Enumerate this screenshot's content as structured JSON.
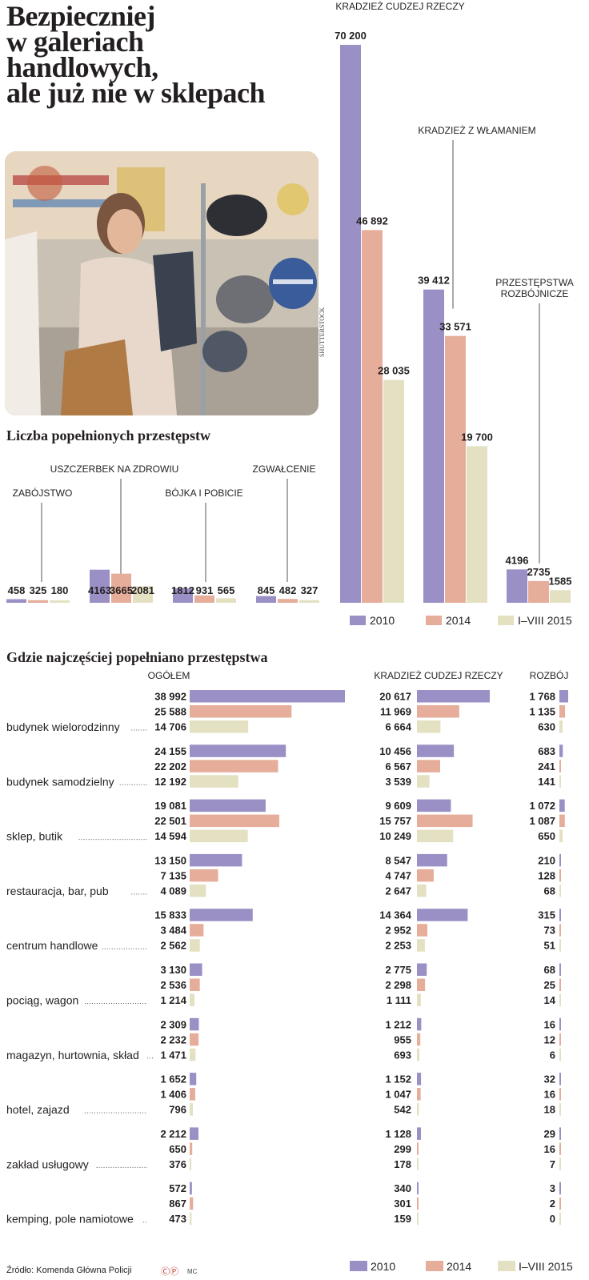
{
  "headline": [
    "Bezpieczniej",
    "w galeriach",
    "handlowych,",
    "ale już nie w sklepach"
  ],
  "photo_credit": "SHUTTERSTOCK",
  "colors": {
    "y2010": "#9b90c5",
    "y2014": "#e5ad9a",
    "y2015": "#e4e0c2",
    "text": "#231f20",
    "rule": "#555555"
  },
  "legend": [
    "2010",
    "2014",
    "I–VIII 2015"
  ],
  "section1_title": "Liczba popełnionych przestępstw",
  "section2_title": "Gdzie najczęściej popełniano przestępstwa",
  "source": "Źródło: Komenda Główna Policji",
  "logo_mark": "ⒸⓅ",
  "author": "MC",
  "chart_data": [
    {
      "type": "bar",
      "title": "Liczba popełnionych przestępstw",
      "series_names": [
        "2010",
        "2014",
        "I–VIII 2015"
      ],
      "categories": [
        {
          "label": "ZABÓJSTWO",
          "values": [
            458,
            325,
            180
          ],
          "display": [
            "458",
            "325",
            "180"
          ]
        },
        {
          "label": "USZCZERBEK NA ZDROWIU",
          "values": [
            4163,
            3665,
            2081
          ],
          "display": [
            "4163",
            "3665",
            "2081"
          ]
        },
        {
          "label": "BÓJKA I POBICIE",
          "values": [
            1812,
            931,
            565
          ],
          "display": [
            "1812",
            "931",
            "565"
          ]
        },
        {
          "label": "ZGWAŁCENIE",
          "values": [
            845,
            482,
            327
          ],
          "display": [
            "845",
            "482",
            "327"
          ]
        },
        {
          "label": "KRADZIEŻ CUDZEJ RZECZY",
          "values": [
            70200,
            46892,
            28035
          ],
          "display": [
            "70 200",
            "46 892",
            "28 035"
          ]
        },
        {
          "label": "KRADZIEŻ Z WŁAMANIEM",
          "values": [
            39412,
            33571,
            19700
          ],
          "display": [
            "39 412",
            "33 571",
            "19 700"
          ]
        },
        {
          "label": [
            "PRZESTĘPSTWA",
            "ROZBÓJNICZE"
          ],
          "values": [
            4196,
            2735,
            1585
          ],
          "display": [
            "4196",
            "2735",
            "1585"
          ]
        }
      ],
      "ylim": [
        0,
        70200
      ]
    },
    {
      "type": "bar",
      "orientation": "horizontal",
      "title": "Gdzie najczęściej popełniano przestępstwa",
      "series_names": [
        "2010",
        "2014",
        "I–VIII 2015"
      ],
      "groups": [
        "OGÓŁEM",
        "KRADZIEŻ CUDZEJ RZECZY",
        "ROZBÓJ"
      ],
      "rows": [
        {
          "place": "budynek wielorodzinny",
          "ogolem": [
            38992,
            25588,
            14706
          ],
          "kradziez": [
            20617,
            11969,
            6664
          ],
          "rozboj": [
            1768,
            1135,
            630
          ],
          "ogolem_txt": [
            "38 992",
            "25 588",
            "14 706"
          ],
          "kradziez_txt": [
            "20 617",
            "11 969",
            "6 664"
          ],
          "rozboj_txt": [
            "1 768",
            "1 135",
            "630"
          ]
        },
        {
          "place": "budynek samodzielny",
          "ogolem": [
            24155,
            22202,
            12192
          ],
          "kradziez": [
            10456,
            6567,
            3539
          ],
          "rozboj": [
            683,
            241,
            141
          ],
          "ogolem_txt": [
            "24 155",
            "22 202",
            "12 192"
          ],
          "kradziez_txt": [
            "10 456",
            "6 567",
            "3 539"
          ],
          "rozboj_txt": [
            "683",
            "241",
            "141"
          ]
        },
        {
          "place": "sklep, butik",
          "ogolem": [
            19081,
            22501,
            14594
          ],
          "kradziez": [
            9609,
            15757,
            10249
          ],
          "rozboj": [
            1072,
            1087,
            650
          ],
          "ogolem_txt": [
            "19 081",
            "22 501",
            "14 594"
          ],
          "kradziez_txt": [
            "9 609",
            "15 757",
            "10 249"
          ],
          "rozboj_txt": [
            "1 072",
            "1 087",
            "650"
          ]
        },
        {
          "place": "restauracja, bar, pub",
          "ogolem": [
            13150,
            7135,
            4089
          ],
          "kradziez": [
            8547,
            4747,
            2647
          ],
          "rozboj": [
            210,
            128,
            68
          ],
          "ogolem_txt": [
            "13 150",
            "7 135",
            "4 089"
          ],
          "kradziez_txt": [
            "8 547",
            "4 747",
            "2 647"
          ],
          "rozboj_txt": [
            "210",
            "128",
            "68"
          ]
        },
        {
          "place": "centrum handlowe",
          "ogolem": [
            15833,
            3484,
            2562
          ],
          "kradziez": [
            14364,
            2952,
            2253
          ],
          "rozboj": [
            315,
            73,
            51
          ],
          "ogolem_txt": [
            "15 833",
            "3 484",
            "2 562"
          ],
          "kradziez_txt": [
            "14 364",
            "2 952",
            "2 253"
          ],
          "rozboj_txt": [
            "315",
            "73",
            "51"
          ]
        },
        {
          "place": "pociąg, wagon",
          "ogolem": [
            3130,
            2536,
            1214
          ],
          "kradziez": [
            2775,
            2298,
            1111
          ],
          "rozboj": [
            68,
            25,
            14
          ],
          "ogolem_txt": [
            "3 130",
            "2 536",
            "1 214"
          ],
          "kradziez_txt": [
            "2 775",
            "2 298",
            "1 111"
          ],
          "rozboj_txt": [
            "68",
            "25",
            "14"
          ]
        },
        {
          "place": "magazyn, hurtownia, skład",
          "ogolem": [
            2309,
            2232,
            1471
          ],
          "kradziez": [
            1212,
            955,
            693
          ],
          "rozboj": [
            16,
            12,
            6
          ],
          "ogolem_txt": [
            "2 309",
            "2 232",
            "1 471"
          ],
          "kradziez_txt": [
            "1 212",
            "955",
            "693"
          ],
          "rozboj_txt": [
            "16",
            "12",
            "6"
          ]
        },
        {
          "place": "hotel, zajazd",
          "ogolem": [
            1652,
            1406,
            796
          ],
          "kradziez": [
            1152,
            1047,
            542
          ],
          "rozboj": [
            32,
            16,
            18
          ],
          "ogolem_txt": [
            "1 652",
            "1 406",
            "796"
          ],
          "kradziez_txt": [
            "1 152",
            "1 047",
            "542"
          ],
          "rozboj_txt": [
            "32",
            "16",
            "18"
          ]
        },
        {
          "place": "zakład usługowy",
          "ogolem": [
            2212,
            650,
            376
          ],
          "kradziez": [
            1128,
            299,
            178
          ],
          "rozboj": [
            29,
            16,
            7
          ],
          "ogolem_txt": [
            "2 212",
            "650",
            "376"
          ],
          "kradziez_txt": [
            "1 128",
            "299",
            "178"
          ],
          "rozboj_txt": [
            "29",
            "16",
            "7"
          ]
        },
        {
          "place": "kemping, pole namiotowe",
          "ogolem": [
            572,
            867,
            473
          ],
          "kradziez": [
            340,
            301,
            159
          ],
          "rozboj": [
            3,
            2,
            0
          ],
          "ogolem_txt": [
            "572",
            "867",
            "473"
          ],
          "kradziez_txt": [
            "340",
            "301",
            "159"
          ],
          "rozboj_txt": [
            "3",
            "2",
            "0"
          ]
        }
      ]
    }
  ]
}
